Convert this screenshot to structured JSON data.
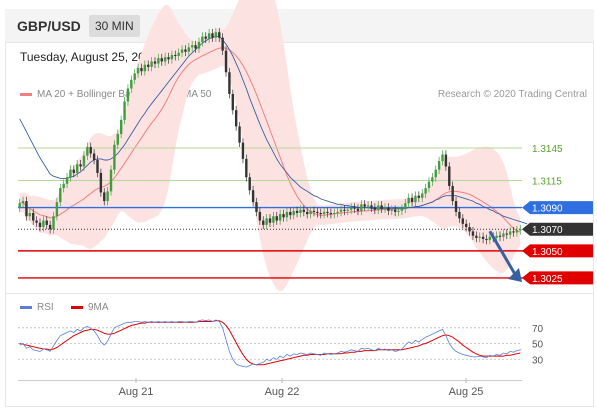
{
  "header": {
    "symbol": "GBP/USD",
    "timeframe": "30 MIN"
  },
  "timestamp": "Tuesday, August 25, 2020 1:49:55 AM CET",
  "legend": {
    "bollinger": {
      "label": "MA 20 + Bollinger Bands",
      "color": "#f08080"
    },
    "ma50": {
      "label": "MA 50",
      "color": "#3a5fa0"
    }
  },
  "credit": "Research © 2020 Trading Central",
  "rsi_legend": {
    "rsi": {
      "label": "RSI",
      "color": "#5b7fd6"
    },
    "ma": {
      "label": "9MA",
      "color": "#e00000"
    }
  },
  "chart_data": {
    "type": "candlestick",
    "x_ticks": [
      "Aug 21",
      "Aug 22",
      "Aug 25"
    ],
    "price_range": [
      1.3012,
      1.3182
    ],
    "price_levels": [
      {
        "value": 1.3145,
        "label": "1.3145",
        "kind": "resistance",
        "color": "#5aa02c"
      },
      {
        "value": 1.3115,
        "label": "1.3115",
        "kind": "resistance",
        "color": "#5aa02c"
      },
      {
        "value": 1.309,
        "label": "1.3090",
        "kind": "pivot",
        "color": "#2f6fe0"
      },
      {
        "value": 1.307,
        "label": "1.3070",
        "kind": "last",
        "color": "#333333"
      },
      {
        "value": 1.305,
        "label": "1.3050",
        "kind": "support",
        "color": "#e00000"
      },
      {
        "value": 1.3025,
        "label": "1.3025",
        "kind": "support",
        "color": "#e00000"
      }
    ],
    "close": [
      1.3094,
      1.3096,
      1.3082,
      1.3085,
      1.3078,
      1.3076,
      1.3072,
      1.3078,
      1.3074,
      1.307,
      1.3082,
      1.3095,
      1.3108,
      1.3112,
      1.3118,
      1.3125,
      1.3122,
      1.313,
      1.3128,
      1.3138,
      1.3146,
      1.314,
      1.3134,
      1.3122,
      1.3104,
      1.3096,
      1.3105,
      1.3125,
      1.3148,
      1.3158,
      1.3171,
      1.3188,
      1.32,
      1.3208,
      1.3214,
      1.3219,
      1.3216,
      1.3222,
      1.322,
      1.3225,
      1.3223,
      1.3228,
      1.3225,
      1.3229,
      1.3227,
      1.3231,
      1.323,
      1.3233,
      1.3236,
      1.3234,
      1.3238,
      1.324,
      1.3237,
      1.3243,
      1.3248,
      1.3246,
      1.3251,
      1.3247,
      1.3252,
      1.3247,
      1.3235,
      1.3215,
      1.3195,
      1.318,
      1.3165,
      1.315,
      1.3135,
      1.3118,
      1.3106,
      1.3095,
      1.3086,
      1.3078,
      1.3074,
      1.308,
      1.3076,
      1.3082,
      1.3078,
      1.3084,
      1.3081,
      1.3086,
      1.3083,
      1.3087,
      1.3085,
      1.3088,
      1.3086,
      1.3084,
      1.3087,
      1.3086,
      1.3085,
      1.3084,
      1.3086,
      1.3085,
      1.3084,
      1.3085,
      1.3086,
      1.3088,
      1.3087,
      1.3088,
      1.309,
      1.3089,
      1.3087,
      1.3093,
      1.3091,
      1.3092,
      1.309,
      1.3088,
      1.3092,
      1.3089,
      1.309,
      1.3087,
      1.3088,
      1.3086,
      1.3087,
      1.3089,
      1.3094,
      1.3099,
      1.3095,
      1.3101,
      1.3099,
      1.3103,
      1.3108,
      1.3114,
      1.3118,
      1.3125,
      1.3133,
      1.3139,
      1.3128,
      1.311,
      1.3096,
      1.3086,
      1.308,
      1.3075,
      1.3072,
      1.3068,
      1.3064,
      1.3062,
      1.3063,
      1.3061,
      1.306,
      1.3063,
      1.3062,
      1.3064,
      1.3063,
      1.3066,
      1.3065,
      1.3068,
      1.3067,
      1.3069,
      1.307
    ],
    "ma50": [
      1.3172,
      1.3166,
      1.316,
      1.3154,
      1.3148,
      1.3142,
      1.3136,
      1.3131,
      1.3126,
      1.3121,
      1.3119,
      1.3118,
      1.3117,
      1.3117,
      1.3117,
      1.3118,
      1.3119,
      1.3121,
      1.3123,
      1.3126,
      1.3129,
      1.3132,
      1.3134,
      1.3135,
      1.3135,
      1.3134,
      1.3134,
      1.3135,
      1.3137,
      1.314,
      1.3144,
      1.3148,
      1.3153,
      1.3158,
      1.3163,
      1.3168,
      1.3173,
      1.3177,
      1.3182,
      1.3186,
      1.319,
      1.3194,
      1.3198,
      1.3202,
      1.3206,
      1.321,
      1.3214,
      1.3218,
      1.3222,
      1.3226,
      1.323,
      1.3233,
      1.3236,
      1.3239,
      1.3242,
      1.3244,
      1.3246,
      1.3247,
      1.3248,
      1.3248,
      1.3245,
      1.3241,
      1.3236,
      1.323,
      1.3223,
      1.3216,
      1.3208,
      1.32,
      1.3191,
      1.3183,
      1.3175,
      1.3167,
      1.316,
      1.3153,
      1.3147,
      1.3141,
      1.3135,
      1.313,
      1.3126,
      1.3122,
      1.3118,
      1.3115,
      1.3112,
      1.3109,
      1.3107,
      1.3105,
      1.3103,
      1.3101,
      1.31,
      1.3098,
      1.3097,
      1.3096,
      1.3095,
      1.3094,
      1.3093,
      1.3093,
      1.3092,
      1.3092,
      1.3091,
      1.3091,
      1.309,
      1.309,
      1.309,
      1.309,
      1.3089,
      1.3089,
      1.3089,
      1.3089,
      1.3089,
      1.3089,
      1.3089,
      1.3089,
      1.3089,
      1.3089,
      1.3089,
      1.309,
      1.309,
      1.3091,
      1.3091,
      1.3092,
      1.3093,
      1.3094,
      1.3095,
      1.3097,
      1.3098,
      1.31,
      1.3101,
      1.3101,
      1.3101,
      1.3101,
      1.31,
      1.3099,
      1.3098,
      1.3097,
      1.3096,
      1.3094,
      1.3093,
      1.3091,
      1.309,
      1.3088,
      1.3087,
      1.3085,
      1.3084,
      1.3082,
      1.3081,
      1.308,
      1.3079,
      1.3078,
      1.3077,
      1.3076,
      1.3075
    ],
    "rsi": [
      48,
      50,
      44,
      46,
      42,
      41,
      40,
      43,
      42,
      40,
      47,
      54,
      60,
      62,
      64,
      66,
      64,
      68,
      66,
      70,
      72,
      69,
      66,
      60,
      52,
      48,
      53,
      62,
      70,
      72,
      74,
      76,
      77,
      77,
      78,
      78,
      77,
      78,
      77,
      78,
      77,
      78,
      77,
      78,
      77,
      78,
      77,
      78,
      78,
      77,
      78,
      78,
      77,
      79,
      80,
      79,
      80,
      78,
      80,
      78,
      70,
      55,
      40,
      30,
      24,
      22,
      21,
      20,
      22,
      24,
      23,
      25,
      26,
      30,
      28,
      32,
      30,
      34,
      32,
      36,
      34,
      37,
      36,
      38,
      37,
      36,
      38,
      37,
      36,
      35,
      38,
      37,
      36,
      37,
      38,
      40,
      39,
      40,
      42,
      41,
      40,
      44,
      43,
      44,
      42,
      41,
      44,
      42,
      43,
      41,
      42,
      40,
      41,
      43,
      48,
      52,
      50,
      54,
      52,
      55,
      58,
      60,
      62,
      64,
      66,
      68,
      60,
      50,
      44,
      40,
      38,
      36,
      35,
      34,
      33,
      33,
      34,
      33,
      32,
      35,
      34,
      36,
      35,
      38,
      37,
      40,
      39,
      41,
      42
    ],
    "rsi_ma": [
      50,
      49,
      48,
      47,
      46,
      45,
      44,
      43,
      43,
      42,
      43,
      45,
      48,
      51,
      54,
      57,
      60,
      62,
      64,
      66,
      67,
      68,
      68,
      67,
      65,
      63,
      62,
      62,
      63,
      65,
      67,
      69,
      71,
      73,
      74,
      75,
      76,
      76,
      77,
      77,
      77,
      77,
      77,
      77,
      77,
      77,
      77,
      77,
      77,
      77,
      77,
      77,
      77,
      78,
      78,
      78,
      78,
      78,
      79,
      79,
      77,
      73,
      67,
      59,
      51,
      43,
      36,
      30,
      26,
      24,
      23,
      23,
      23,
      24,
      25,
      26,
      27,
      28,
      29,
      30,
      31,
      32,
      33,
      34,
      35,
      35,
      36,
      36,
      36,
      36,
      36,
      37,
      37,
      37,
      37,
      37,
      38,
      38,
      39,
      39,
      40,
      40,
      41,
      41,
      41,
      41,
      42,
      42,
      42,
      42,
      42,
      42,
      42,
      42,
      43,
      44,
      45,
      46,
      47,
      49,
      50,
      52,
      54,
      56,
      58,
      60,
      61,
      60,
      58,
      55,
      52,
      48,
      45,
      42,
      39,
      37,
      35,
      34,
      34,
      34,
      34,
      34,
      34,
      34,
      35,
      35,
      36,
      37,
      38
    ],
    "rsi_levels": [
      70,
      50,
      30
    ],
    "rsi_range": [
      10,
      85
    ]
  }
}
